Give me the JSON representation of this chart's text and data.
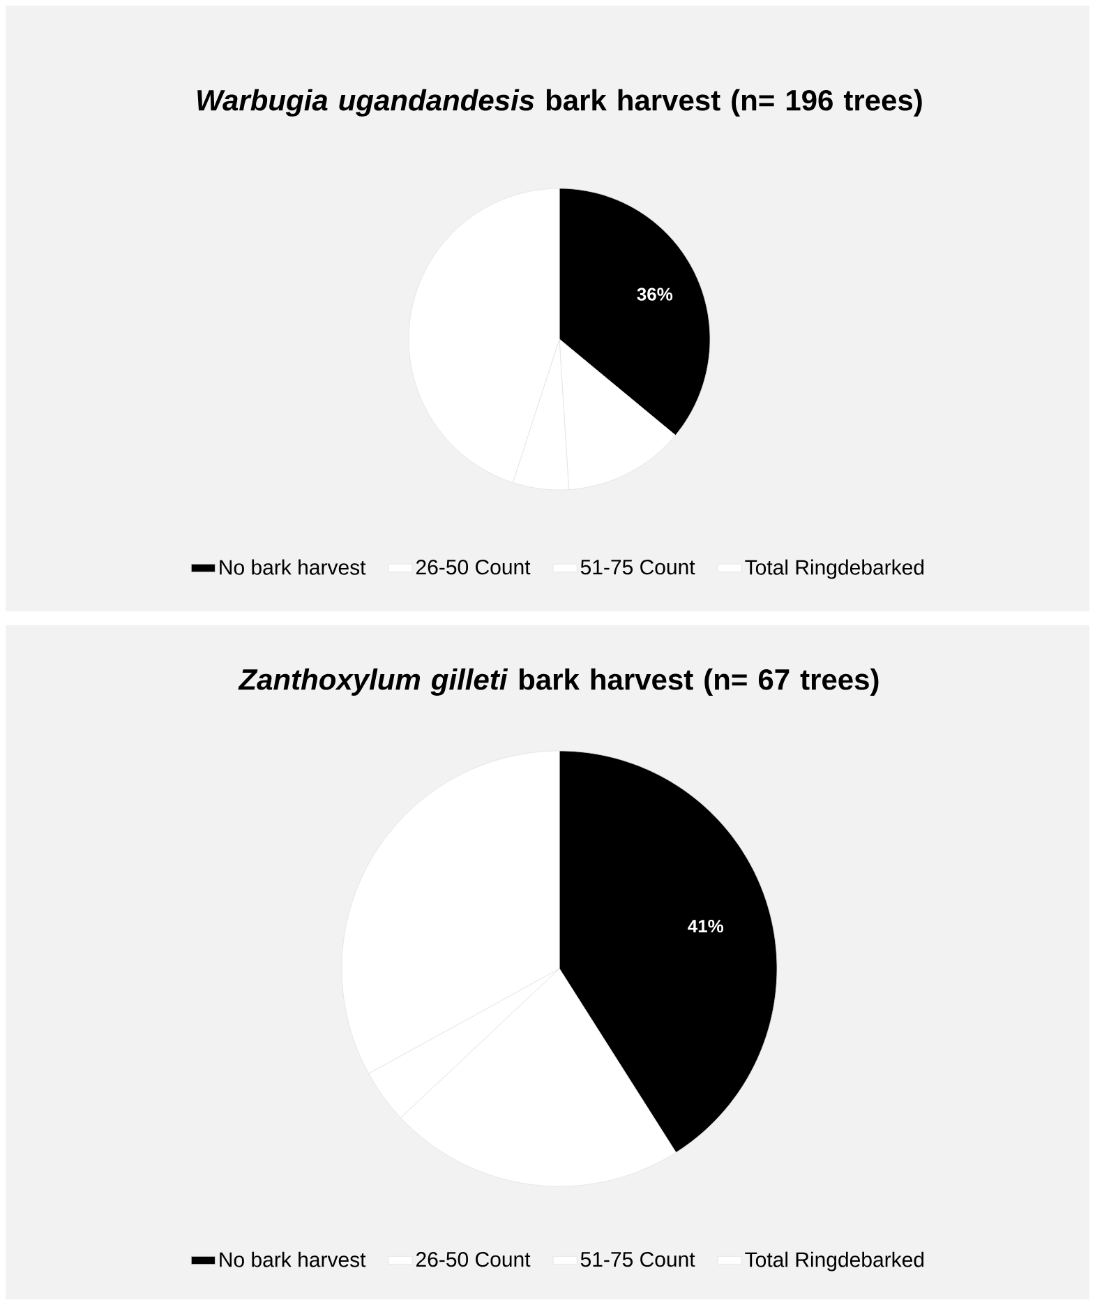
{
  "chart_data": [
    {
      "type": "pie",
      "title": "*Warbugia ugandandesis* bark harvest (n= 196 trees)",
      "categories": [
        "No bark harvest",
        "26-50 Count",
        "51-75 Count",
        "Total Ringdebarked"
      ],
      "values": [
        36,
        13,
        6,
        45
      ],
      "colors": [
        "#000000",
        "#ffffff",
        "#ffffff",
        "#ffffff"
      ],
      "value_labels": [
        "36%",
        null,
        null,
        null
      ],
      "legend": "bottom"
    },
    {
      "type": "pie",
      "title": "*Zanthoxylum gilleti* bark harvest (n= 67 trees)",
      "categories": [
        "No bark harvest",
        "26-50 Count",
        "51-75 Count",
        "Total Ringdebarked"
      ],
      "values": [
        41,
        22,
        4,
        33
      ],
      "colors": [
        "#000000",
        "#ffffff",
        "#ffffff",
        "#ffffff"
      ],
      "value_labels": [
        "41%",
        null,
        null,
        null
      ],
      "legend": "bottom"
    }
  ]
}
